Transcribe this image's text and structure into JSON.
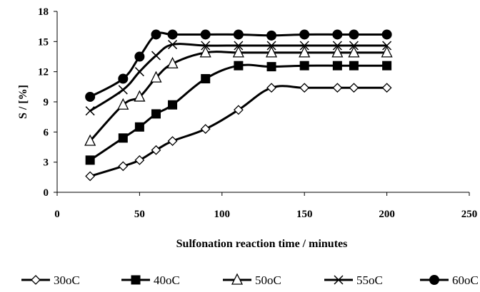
{
  "chart_data": {
    "type": "line",
    "title": "",
    "xlabel": "Sulfonation reaction time / minutes",
    "ylabel": "S / [%]",
    "xlim": [
      0,
      250
    ],
    "ylim": [
      0,
      18
    ],
    "x_ticks": [
      0,
      50,
      100,
      150,
      200,
      250
    ],
    "y_ticks": [
      0,
      3,
      6,
      9,
      12,
      15,
      18
    ],
    "grid": false,
    "legend_position": "bottom",
    "x": [
      20,
      40,
      50,
      60,
      70,
      90,
      110,
      130,
      150,
      170,
      180,
      200
    ],
    "series": [
      {
        "name": "30oC",
        "marker": "diamond-open",
        "values": [
          1.6,
          2.6,
          3.2,
          4.2,
          5.1,
          6.3,
          8.2,
          10.4,
          10.4,
          10.4,
          10.4,
          10.4
        ]
      },
      {
        "name": "40oC",
        "marker": "square-filled",
        "values": [
          3.2,
          5.4,
          6.5,
          7.8,
          8.7,
          11.3,
          12.6,
          12.5,
          12.6,
          12.6,
          12.6,
          12.6
        ]
      },
      {
        "name": "50oC",
        "marker": "triangle-open",
        "values": [
          5.1,
          8.7,
          9.5,
          11.4,
          12.8,
          13.9,
          13.9,
          13.9,
          13.9,
          13.9,
          13.9,
          13.9
        ]
      },
      {
        "name": "55oC",
        "marker": "x",
        "values": [
          8.1,
          10.2,
          12.0,
          13.6,
          14.7,
          14.6,
          14.6,
          14.6,
          14.6,
          14.6,
          14.6,
          14.6
        ]
      },
      {
        "name": "60oC",
        "marker": "circle-filled",
        "values": [
          9.5,
          11.3,
          13.5,
          15.7,
          15.7,
          15.7,
          15.7,
          15.6,
          15.7,
          15.7,
          15.7,
          15.7
        ]
      }
    ]
  }
}
